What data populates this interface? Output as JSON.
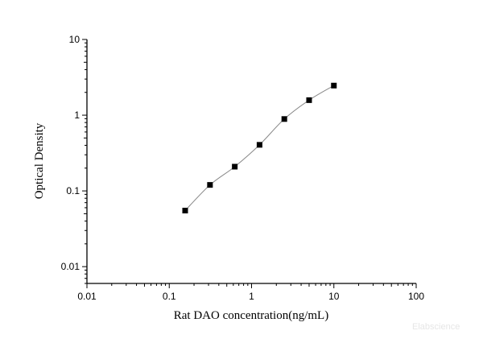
{
  "chart_data": {
    "type": "scatter",
    "title": "",
    "xlabel": "Rat DAO concentration(ng/mL)",
    "ylabel": "Optical Density",
    "x_scale": "log",
    "y_scale": "log",
    "xlim": [
      0.01,
      100
    ],
    "ylim": [
      0.006,
      10
    ],
    "x_ticks": [
      "0.01",
      "0.1",
      "1",
      "10",
      "100"
    ],
    "y_ticks": [
      "0.01",
      "0.1",
      "1",
      "10"
    ],
    "grid": false,
    "legend": "none",
    "series": [
      {
        "x": [
          0.156,
          0.3125,
          0.625,
          1.25,
          2.5,
          5,
          10
        ],
        "y": [
          0.055,
          0.12,
          0.209,
          0.406,
          0.89,
          1.58,
          2.46
        ],
        "marker": "square",
        "marker_color": "#000000",
        "fit_line": true,
        "fit_color": "#888888"
      }
    ]
  },
  "watermark": "Elabscience"
}
